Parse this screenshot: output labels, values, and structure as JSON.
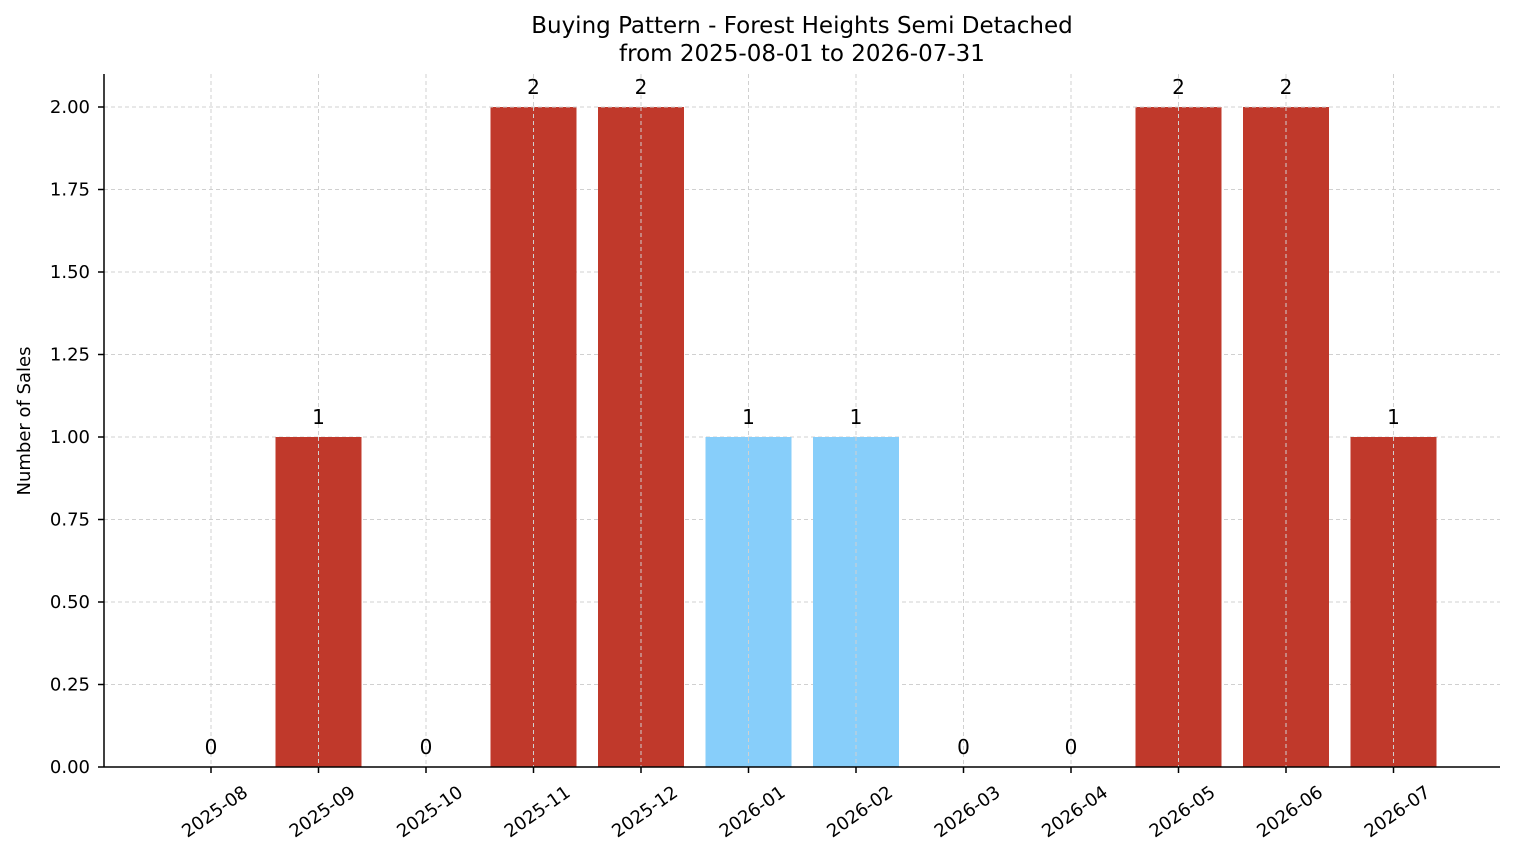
{
  "chart_data": {
    "type": "bar",
    "title": "Buying Pattern - Forest Heights Semi Detached",
    "subtitle": "from 2025-08-01 to 2026-07-31",
    "xlabel": "",
    "ylabel": "Number of Sales",
    "categories": [
      "2025-08",
      "2025-09",
      "2025-10",
      "2025-11",
      "2025-12",
      "2026-01",
      "2026-02",
      "2026-03",
      "2026-04",
      "2026-05",
      "2026-06",
      "2026-07"
    ],
    "values": [
      0,
      1,
      0,
      2,
      2,
      1,
      1,
      0,
      0,
      2,
      2,
      1
    ],
    "bar_colors": [
      "#c0392b",
      "#c0392b",
      "#c0392b",
      "#c0392b",
      "#c0392b",
      "#87cefa",
      "#87cefa",
      "#c0392b",
      "#c0392b",
      "#c0392b",
      "#c0392b",
      "#c0392b"
    ],
    "ylim": [
      0,
      2.1
    ],
    "yticks": [
      "0.00",
      "0.25",
      "0.50",
      "0.75",
      "1.00",
      "1.25",
      "1.50",
      "1.75",
      "2.00"
    ],
    "grid": true,
    "legend": "none"
  }
}
